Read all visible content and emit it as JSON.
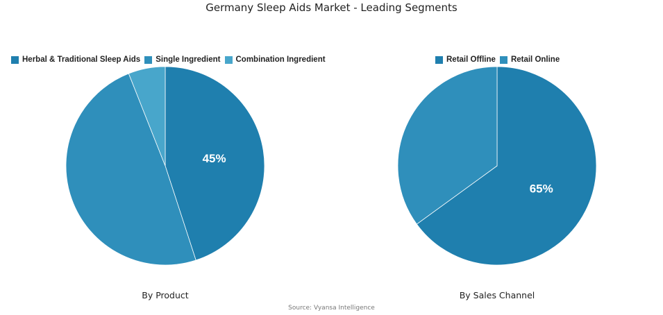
{
  "title": "Germany Sleep Aids Market - Leading Segments",
  "source": "Source: Vyansa Intelligence",
  "chart_data": [
    {
      "type": "pie",
      "subtitle": "By Product",
      "categories": [
        "Herbal & Traditional Sleep Aids",
        "Single Ingredient",
        "Combination Ingredient"
      ],
      "values": [
        45,
        49,
        6
      ],
      "data_labels": [
        "45%",
        "",
        ""
      ],
      "colors": [
        "#1f7fae",
        "#2f8fbb",
        "#48a6cb"
      ],
      "legend": "top"
    },
    {
      "type": "pie",
      "subtitle": "By Sales Channel",
      "categories": [
        "Retail Offline",
        "Retail Online"
      ],
      "values": [
        65,
        35
      ],
      "data_labels": [
        "65%",
        ""
      ],
      "colors": [
        "#1f7fae",
        "#2f8fbb"
      ],
      "legend": "top"
    }
  ]
}
